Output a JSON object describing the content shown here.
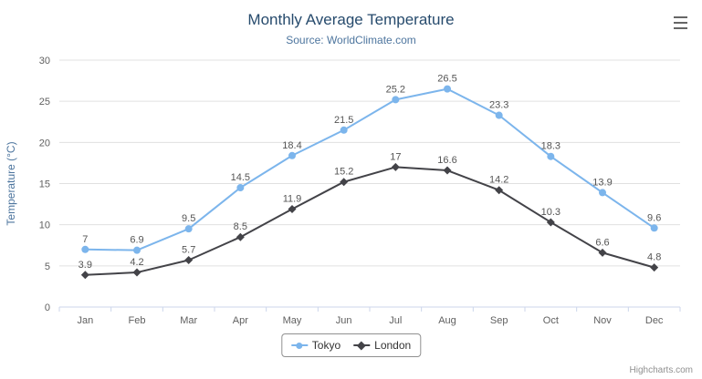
{
  "header": {
    "title": "Monthly Average Temperature",
    "subtitle": "Source: WorldClimate.com"
  },
  "menu": {
    "icon": "hamburger-icon"
  },
  "credit": "Highcharts.com",
  "chart_data": {
    "type": "line",
    "title": "Monthly Average Temperature",
    "subtitle": "Source: WorldClimate.com",
    "categories": [
      "Jan",
      "Feb",
      "Mar",
      "Apr",
      "May",
      "Jun",
      "Jul",
      "Aug",
      "Sep",
      "Oct",
      "Nov",
      "Dec"
    ],
    "series": [
      {
        "name": "Tokyo",
        "color": "#7cb5ec",
        "marker": "circle",
        "values": [
          7,
          6.9,
          9.5,
          14.5,
          18.4,
          21.5,
          25.2,
          26.5,
          23.3,
          18.3,
          13.9,
          9.6
        ]
      },
      {
        "name": "London",
        "color": "#434348",
        "marker": "diamond",
        "values": [
          3.9,
          4.2,
          5.7,
          8.5,
          11.9,
          15.2,
          17,
          16.6,
          14.2,
          10.3,
          6.6,
          4.8
        ]
      }
    ],
    "xlabel": "",
    "ylabel": "Temperature (°C)",
    "ylim": [
      0,
      30
    ],
    "ytick_interval": 5,
    "grid": true,
    "data_labels": true,
    "legend_position": "bottom"
  }
}
